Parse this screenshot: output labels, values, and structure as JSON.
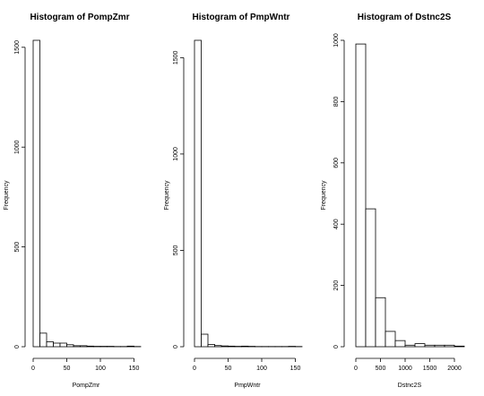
{
  "chart_data": [
    {
      "type": "bar",
      "title": "Histogram of PompZmr",
      "xlabel": "PompZmr",
      "ylabel": "Frequency",
      "bin_edges": [
        0,
        10,
        20,
        30,
        40,
        50,
        60,
        70,
        80,
        90,
        100,
        110,
        120,
        130,
        140,
        150,
        160
      ],
      "values": [
        1535,
        68,
        25,
        18,
        18,
        10,
        5,
        5,
        3,
        2,
        2,
        2,
        1,
        1,
        3,
        1
      ],
      "xlim": [
        0,
        160
      ],
      "ylim": [
        0,
        1535
      ],
      "xticks": [
        0,
        50,
        100,
        150
      ],
      "yticks": [
        0,
        500,
        1000,
        1500
      ],
      "grid": false
    },
    {
      "type": "bar",
      "title": "Histogram of PmpWntr",
      "xlabel": "PmpWntr",
      "ylabel": "Frequency",
      "bin_edges": [
        0,
        10,
        20,
        30,
        40,
        50,
        60,
        70,
        80,
        90,
        100,
        110,
        120,
        130,
        140,
        150,
        160
      ],
      "values": [
        1590,
        65,
        12,
        6,
        4,
        3,
        2,
        3,
        2,
        1,
        1,
        1,
        1,
        1,
        2,
        1
      ],
      "xlim": [
        0,
        160
      ],
      "ylim": [
        0,
        1590
      ],
      "xticks": [
        0,
        50,
        100,
        150
      ],
      "yticks": [
        0,
        500,
        1000,
        1500
      ],
      "grid": false
    },
    {
      "type": "bar",
      "title": "Histogram of Dstnc2S",
      "xlabel": "Dstnc2S",
      "ylabel": "Frequency",
      "bin_edges": [
        0,
        200,
        400,
        600,
        800,
        1000,
        1200,
        1400,
        1600,
        1800,
        2000,
        2200
      ],
      "values": [
        988,
        450,
        160,
        50,
        20,
        5,
        10,
        5,
        5,
        5,
        2
      ],
      "xlim": [
        0,
        2200
      ],
      "ylim": [
        0,
        1000
      ],
      "xticks": [
        0,
        500,
        1000,
        1500,
        2000
      ],
      "yticks": [
        0,
        200,
        400,
        600,
        800,
        1000
      ],
      "grid": false
    }
  ]
}
